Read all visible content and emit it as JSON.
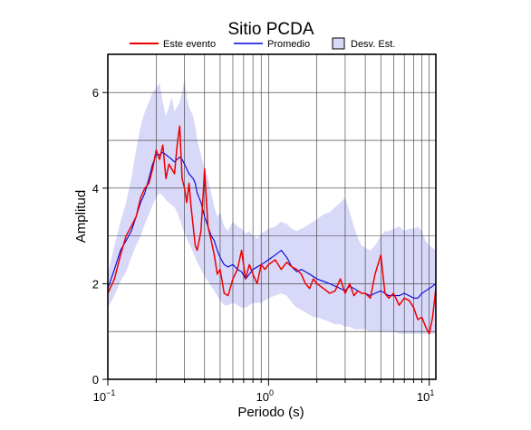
{
  "chart_data": {
    "type": "line",
    "title": "Sitio PCDA",
    "xlabel": "Periodo (s)",
    "ylabel": "Amplitud",
    "x_scale": "log",
    "xlim": [
      0.1,
      11
    ],
    "ylim": [
      0,
      6.8
    ],
    "grid": true,
    "legend_position": "top",
    "x_ticks": [
      {
        "value": 0.1,
        "base": "10",
        "exp": "−1"
      },
      {
        "value": 1,
        "base": "10",
        "exp": "0"
      },
      {
        "value": 10,
        "base": "10",
        "exp": "1"
      }
    ],
    "y_ticks": [
      0,
      2,
      4,
      6
    ],
    "legend": {
      "event_label": "Este evento",
      "mean_label": "Promedio",
      "std_label": "Desv. Est."
    },
    "colors": {
      "event": "#ee0000",
      "mean": "#0000dd",
      "std_fill": "#d8d8f8",
      "grid": "#333333"
    },
    "x": [
      0.1,
      0.11,
      0.12,
      0.13,
      0.14,
      0.15,
      0.16,
      0.17,
      0.18,
      0.19,
      0.2,
      0.21,
      0.22,
      0.23,
      0.24,
      0.25,
      0.26,
      0.27,
      0.28,
      0.29,
      0.3,
      0.31,
      0.32,
      0.33,
      0.34,
      0.35,
      0.36,
      0.38,
      0.4,
      0.42,
      0.44,
      0.46,
      0.48,
      0.5,
      0.53,
      0.56,
      0.6,
      0.64,
      0.68,
      0.72,
      0.76,
      0.8,
      0.85,
      0.9,
      0.95,
      1.0,
      1.1,
      1.2,
      1.3,
      1.4,
      1.5,
      1.6,
      1.7,
      1.8,
      1.9,
      2.0,
      2.2,
      2.4,
      2.6,
      2.8,
      3.0,
      3.2,
      3.4,
      3.6,
      3.8,
      4.0,
      4.3,
      4.6,
      5.0,
      5.3,
      5.6,
      6.0,
      6.5,
      7.0,
      7.5,
      8.0,
      8.5,
      9.0,
      9.5,
      10.0,
      10.5,
      11.0
    ],
    "series": [
      {
        "name": "Este evento",
        "values": [
          1.8,
          2.1,
          2.6,
          3.0,
          3.2,
          3.4,
          3.8,
          4.0,
          4.1,
          4.4,
          4.8,
          4.6,
          4.9,
          4.2,
          4.5,
          4.4,
          4.3,
          4.9,
          5.3,
          4.2,
          4.0,
          3.7,
          4.1,
          3.6,
          3.2,
          2.8,
          2.7,
          3.1,
          4.4,
          3.2,
          2.9,
          2.6,
          2.2,
          2.3,
          1.8,
          1.75,
          2.1,
          2.3,
          2.7,
          2.1,
          2.4,
          2.2,
          2.0,
          2.4,
          2.3,
          2.4,
          2.5,
          2.3,
          2.45,
          2.35,
          2.3,
          2.2,
          2.0,
          1.9,
          2.1,
          2.0,
          1.9,
          1.8,
          1.85,
          2.1,
          1.8,
          2.0,
          1.75,
          1.85,
          1.8,
          1.8,
          1.7,
          2.2,
          2.6,
          1.8,
          1.7,
          1.8,
          1.55,
          1.7,
          1.65,
          1.5,
          1.25,
          1.3,
          1.1,
          0.95,
          1.3,
          1.9
        ]
      },
      {
        "name": "Promedio",
        "values": [
          1.9,
          2.3,
          2.7,
          2.9,
          3.1,
          3.4,
          3.7,
          3.9,
          4.2,
          4.5,
          4.7,
          4.7,
          4.75,
          4.7,
          4.65,
          4.6,
          4.55,
          4.6,
          4.65,
          4.6,
          4.5,
          4.4,
          4.3,
          4.25,
          4.2,
          4.1,
          3.9,
          3.7,
          3.4,
          3.2,
          3.0,
          2.9,
          2.7,
          2.55,
          2.4,
          2.35,
          2.4,
          2.3,
          2.25,
          2.1,
          2.2,
          2.3,
          2.35,
          2.4,
          2.45,
          2.5,
          2.6,
          2.7,
          2.55,
          2.35,
          2.25,
          2.3,
          2.25,
          2.2,
          2.15,
          2.1,
          2.05,
          2.0,
          1.95,
          1.9,
          1.85,
          1.95,
          1.9,
          1.85,
          1.8,
          1.8,
          1.75,
          1.8,
          1.85,
          1.8,
          1.75,
          1.75,
          1.75,
          1.8,
          1.75,
          1.7,
          1.7,
          1.8,
          1.85,
          1.9,
          1.95,
          2.0
        ]
      }
    ],
    "std_upper": [
      2.2,
      2.8,
      3.3,
      3.7,
      4.2,
      4.8,
      5.3,
      5.6,
      5.8,
      6.0,
      6.1,
      6.2,
      5.8,
      5.5,
      5.7,
      5.9,
      5.6,
      5.7,
      5.8,
      6.0,
      6.3,
      5.9,
      5.7,
      5.6,
      5.5,
      5.3,
      5.0,
      4.7,
      4.4,
      4.2,
      3.9,
      3.6,
      3.4,
      3.5,
      3.2,
      3.1,
      3.3,
      3.2,
      3.15,
      3.05,
      3.1,
      3.0,
      2.95,
      3.05,
      3.1,
      3.15,
      3.2,
      3.3,
      3.25,
      3.15,
      3.1,
      3.15,
      3.2,
      3.25,
      3.3,
      3.35,
      3.45,
      3.5,
      3.6,
      3.7,
      3.8,
      3.5,
      3.2,
      2.95,
      2.8,
      2.75,
      2.7,
      2.8,
      3.0,
      3.1,
      3.1,
      3.15,
      3.2,
      3.1,
      3.15,
      3.15,
      3.2,
      3.1,
      2.9,
      2.8,
      2.75,
      2.7
    ],
    "std_lower": [
      1.5,
      1.75,
      2.05,
      2.25,
      2.55,
      2.8,
      3.0,
      3.25,
      3.45,
      3.65,
      3.8,
      3.9,
      3.85,
      3.75,
      3.7,
      3.65,
      3.6,
      3.5,
      3.35,
      3.2,
      3.05,
      2.95,
      2.85,
      2.75,
      2.65,
      2.55,
      2.45,
      2.3,
      2.15,
      2.05,
      1.95,
      1.85,
      1.75,
      1.65,
      1.55,
      1.55,
      1.6,
      1.55,
      1.5,
      1.5,
      1.55,
      1.6,
      1.6,
      1.6,
      1.65,
      1.7,
      1.75,
      1.8,
      1.75,
      1.6,
      1.5,
      1.45,
      1.4,
      1.35,
      1.3,
      1.3,
      1.25,
      1.2,
      1.15,
      1.15,
      1.1,
      1.1,
      1.05,
      1.05,
      1.05,
      1.05,
      1.0,
      1.0,
      1.0,
      1.0,
      1.0,
      1.0,
      0.95,
      0.95,
      0.95,
      0.95,
      0.95,
      0.95,
      0.95,
      0.95,
      0.95,
      0.95
    ]
  }
}
